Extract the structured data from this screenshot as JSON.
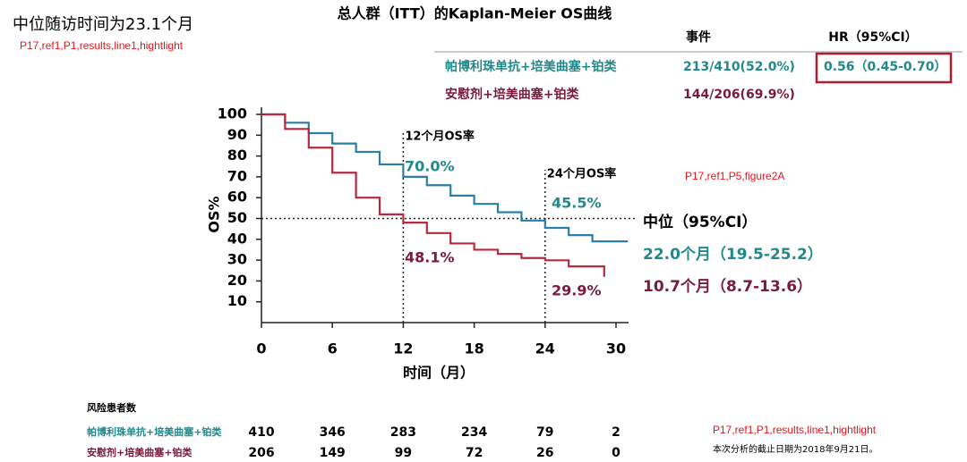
{
  "chart_data": {
    "type": "line",
    "title": "总人群（ITT）的Kaplan-Meier OS曲线",
    "subtitle": "中位随访时间为23.1个月",
    "notes": [
      "P17,ref1,P1,results,line1,hightlight",
      "P17,ref1,P5,figure2A",
      "P17,ref1,P1,results,line1,hightlight"
    ],
    "footnote": "本次分析的截止日期为2018年9月21日。",
    "x_label": "时间（月）",
    "y_label": "OS%",
    "xlim": [
      0,
      30
    ],
    "ylim": [
      0,
      100
    ],
    "xticks": [
      0,
      6,
      12,
      18,
      24,
      30
    ],
    "yticks": [
      10,
      20,
      30,
      40,
      50,
      60,
      70,
      80,
      90,
      100
    ],
    "median_line": 50,
    "landmarks": [
      12,
      24
    ],
    "landmark_labels": [
      "12个月OS率",
      "24个月OS率"
    ],
    "median_header": "中位（95%CI）",
    "events_header": "事件",
    "hr_header": "HR（95%CI）",
    "hazard_ratio": "0.56（0.45-0.70）",
    "risk_title": "风险患者数",
    "series": [
      {
        "name": "帕博利珠单抗+培美曲塞+铂类",
        "color": "#2a7fa8",
        "text_color": "#22898a",
        "x": [
          0,
          2,
          4,
          6,
          8,
          10,
          12,
          14,
          16,
          18,
          20,
          22,
          24,
          26,
          28,
          31
        ],
        "values": [
          100,
          96,
          91,
          86,
          82,
          76,
          70,
          66,
          61,
          57,
          53,
          49,
          45.5,
          42,
          39,
          39
        ],
        "events": "213/410(52.0%)",
        "rate_labels": [
          "70.0%",
          "45.5%"
        ],
        "median_label": "22.0个月（19.5-25.2）",
        "at_risk": [
          410,
          346,
          283,
          234,
          79,
          2
        ]
      },
      {
        "name": "安慰剂+培美曲塞+铂类",
        "color": "#b8283f",
        "text_color": "#7a1a3c",
        "x": [
          0,
          2,
          4,
          6,
          8,
          10,
          12,
          14,
          16,
          18,
          20,
          22,
          24,
          26,
          28,
          29
        ],
        "values": [
          100,
          93,
          84,
          72,
          60,
          52,
          48,
          43,
          38,
          35,
          33,
          31,
          29.9,
          27,
          27,
          22
        ],
        "events": "144/206(69.9%)",
        "rate_labels": [
          "48.1%",
          "29.9%"
        ],
        "median_label": "10.7个月（8.7-13.6）",
        "at_risk": [
          206,
          149,
          99,
          72,
          26,
          0
        ]
      }
    ]
  }
}
